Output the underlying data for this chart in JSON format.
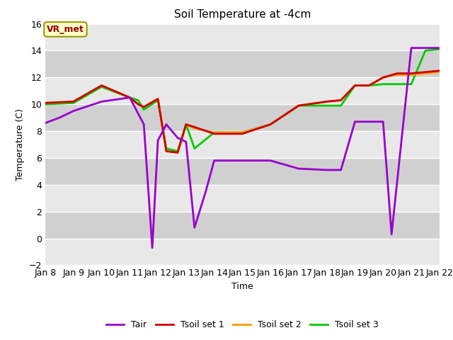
{
  "title": "Soil Temperature at -4cm",
  "xlabel": "Time",
  "ylabel": "Temperature (C)",
  "ylim": [
    -2,
    16
  ],
  "xlim": [
    0,
    14
  ],
  "background_color": "#dcdcdc",
  "band_color_light": "#e8e8e8",
  "band_color_dark": "#d0d0d0",
  "x_tick_labels": [
    "Jan 8",
    "Jan 9",
    "Jan 10",
    "Jan 11",
    "Jan 12",
    "Jan 13",
    "Jan 14",
    "Jan 15",
    "Jan 16",
    "Jan 17",
    "Jan 18",
    "Jan 19",
    "Jan 20",
    "Jan 21",
    "Jan 22"
  ],
  "tair_x": [
    0,
    0.5,
    1,
    2,
    3,
    3.5,
    3.8,
    4,
    4.3,
    4.7,
    5,
    5.3,
    5.7,
    6,
    7,
    8,
    9,
    10,
    10.5,
    11,
    12,
    12.3,
    13,
    14
  ],
  "tair_y": [
    8.6,
    9.0,
    9.5,
    10.2,
    10.5,
    8.5,
    -0.7,
    7.3,
    8.5,
    7.5,
    7.2,
    0.8,
    3.5,
    5.8,
    5.8,
    5.8,
    5.2,
    5.1,
    5.1,
    8.7,
    8.7,
    0.3,
    14.2,
    14.2
  ],
  "tsoil1_x": [
    0,
    1,
    2,
    3,
    3.3,
    3.5,
    4,
    4.3,
    4.7,
    5,
    5.3,
    6,
    7,
    8,
    9,
    10,
    10.5,
    11,
    11.5,
    12,
    12.5,
    13,
    14
  ],
  "tsoil1_y": [
    10.1,
    10.2,
    11.4,
    10.5,
    10.0,
    9.8,
    10.4,
    6.5,
    6.4,
    8.5,
    8.3,
    7.8,
    7.8,
    8.5,
    9.9,
    10.2,
    10.3,
    11.4,
    11.4,
    12.0,
    12.3,
    12.3,
    12.5
  ],
  "tsoil2_x": [
    0,
    1,
    2,
    3,
    3.3,
    3.5,
    4,
    4.3,
    4.7,
    5,
    5.3,
    6,
    7,
    8,
    9,
    10,
    10.5,
    11,
    11.5,
    12,
    12.5,
    13,
    14
  ],
  "tsoil2_y": [
    10.1,
    10.2,
    11.4,
    10.5,
    10.0,
    9.8,
    10.4,
    6.5,
    6.4,
    8.5,
    8.2,
    7.9,
    7.9,
    8.5,
    9.9,
    10.2,
    10.3,
    11.4,
    11.4,
    12.0,
    12.2,
    12.2,
    12.4
  ],
  "tsoil3_x": [
    0,
    1,
    2,
    3,
    3.3,
    3.5,
    4,
    4.3,
    4.7,
    5,
    5.3,
    6,
    7,
    8,
    9,
    10,
    10.5,
    11,
    11.5,
    12,
    12.5,
    13,
    13.5,
    14
  ],
  "tsoil3_y": [
    10.0,
    10.1,
    11.3,
    10.5,
    10.3,
    9.6,
    10.3,
    6.7,
    6.5,
    8.5,
    6.7,
    7.9,
    7.9,
    8.5,
    9.9,
    9.9,
    9.9,
    11.4,
    11.4,
    11.5,
    11.5,
    11.5,
    14.0,
    14.1
  ],
  "tair_color": "#9900cc",
  "tsoil1_color": "#cc0000",
  "tsoil2_color": "#ff9900",
  "tsoil3_color": "#00cc00",
  "legend_labels": [
    "Tair",
    "Tsoil set 1",
    "Tsoil set 2",
    "Tsoil set 3"
  ],
  "annotation_text": "VR_met",
  "grid_color": "#ffffff",
  "yticks": [
    -2,
    0,
    2,
    4,
    6,
    8,
    10,
    12,
    14,
    16
  ]
}
